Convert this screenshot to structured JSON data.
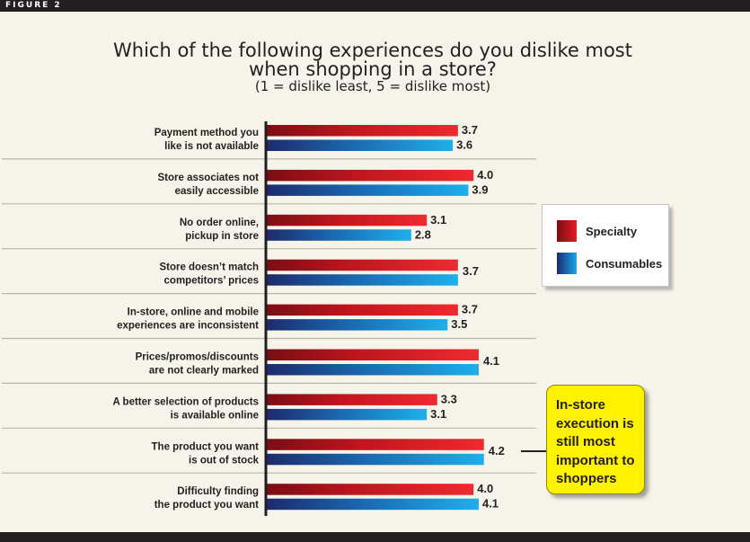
{
  "figure_label": "FIGURE 2",
  "title_line1": "Which of the following experiences do you dislike most",
  "title_line2": "when shopping in a store?",
  "subtitle": "(1 = dislike least, 5 = dislike most)",
  "callout": "In-store execution is still most important to shoppers",
  "colors": {
    "specialty": "#e31e25",
    "consumables": "#1ba6e6",
    "frame": "#231f20",
    "callout": "#fff200"
  },
  "chart_data": {
    "type": "bar",
    "orientation": "horizontal",
    "xlim": [
      0,
      5
    ],
    "grid": false,
    "legend_position": "right",
    "categories": [
      [
        "Payment method you",
        "like is not available"
      ],
      [
        "Store associates not",
        "easily accessible"
      ],
      [
        "No order online,",
        "pickup in store"
      ],
      [
        "Store doesn’t match",
        "competitors’ prices"
      ],
      [
        "In-store, online and mobile",
        "experiences are inconsistent"
      ],
      [
        "Prices/promos/discounts",
        "are not clearly marked"
      ],
      [
        "A better selection of products",
        "is available online"
      ],
      [
        "The product you want",
        "is out of stock"
      ],
      [
        "Difficulty finding",
        "the product you want"
      ]
    ],
    "series": [
      {
        "name": "Specialty",
        "values": [
          3.7,
          4.0,
          3.1,
          3.7,
          3.7,
          4.1,
          3.3,
          4.2,
          4.0
        ]
      },
      {
        "name": "Consumables",
        "values": [
          3.6,
          3.9,
          2.8,
          3.7,
          3.5,
          4.1,
          3.1,
          4.2,
          4.1
        ]
      }
    ],
    "value_labels": [
      [
        "3.7",
        "3.6"
      ],
      [
        "4.0",
        "3.9"
      ],
      [
        "3.1",
        "2.8"
      ],
      [
        "3.7"
      ],
      [
        "3.7",
        "3.5"
      ],
      [
        "4.1"
      ],
      [
        "3.3",
        "3.1"
      ],
      [
        "4.2"
      ],
      [
        "4.0",
        "4.1"
      ]
    ]
  }
}
